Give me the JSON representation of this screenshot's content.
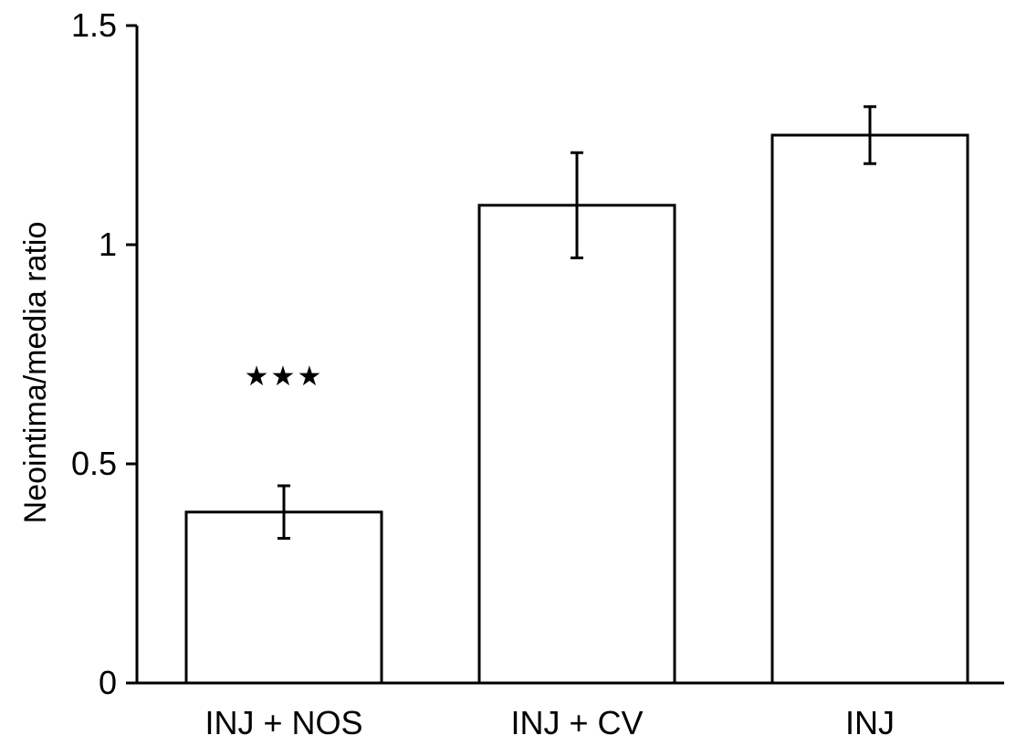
{
  "chart_data": {
    "type": "bar",
    "categories": [
      "INJ + NOS",
      "INJ + CV",
      "INJ"
    ],
    "values": [
      0.39,
      1.09,
      1.25
    ],
    "errors": [
      0.06,
      0.12,
      0.065
    ],
    "ylabel": "Neointima/media ratio",
    "ylim": [
      0,
      1.5
    ],
    "yticks": [
      0,
      0.5,
      1,
      1.5
    ],
    "ytick_labels": [
      "0",
      "0.5",
      "1",
      "1.5"
    ],
    "annotations": [
      {
        "category": "INJ + NOS",
        "text": "★★★"
      }
    ],
    "grid": false,
    "bar_fill": "#ffffff",
    "bar_edge": "#000000"
  }
}
